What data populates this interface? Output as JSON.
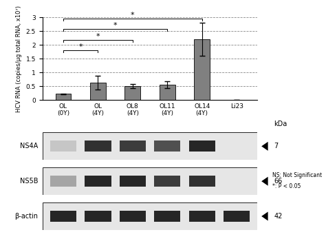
{
  "chart_data": {
    "type": "bar",
    "y_label": "HCV RNA (copies/µg total RNA, x10⁷)",
    "categories": [
      "OL\n(0Y)",
      "OL\n(4Y)",
      "OL8\n(4Y)",
      "OL11\n(4Y)",
      "OL14\n(4Y)",
      "Li23"
    ],
    "values": [
      0.22,
      0.62,
      0.5,
      0.55,
      2.2,
      0
    ],
    "errors": [
      0.01,
      0.25,
      0.07,
      0.12,
      0.6,
      0
    ],
    "color": "#808080",
    "ylim": [
      0,
      3
    ],
    "yticks": [
      0,
      0.5,
      1,
      1.5,
      2,
      2.5,
      3
    ],
    "grid": true,
    "comparisons": [
      {
        "from": "OL\n(0Y)",
        "to": "OL\n(4Y)",
        "label": "*"
      },
      {
        "from": "OL\n(0Y)",
        "to": "OL8\n(4Y)",
        "label": "*"
      },
      {
        "from": "OL\n(0Y)",
        "to": "OL11\n(4Y)",
        "label": "*"
      },
      {
        "from": "OL\n(0Y)",
        "to": "OL14\n(4Y)",
        "label": "*"
      }
    ]
  },
  "blots": {
    "unit": "kDa",
    "rows": [
      {
        "label": "NS4A",
        "size": 7
      },
      {
        "label": "NS5B",
        "size": 66
      },
      {
        "label": "β-actin",
        "size": 42
      }
    ]
  },
  "legend_notes": [
    "NS: Not Significant",
    "*: P < 0.05"
  ]
}
